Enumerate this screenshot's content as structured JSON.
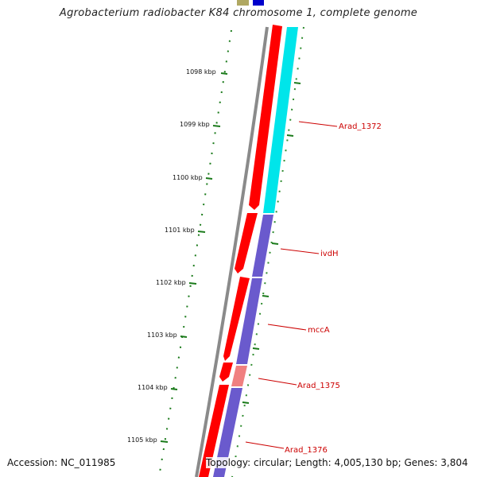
{
  "title": "Agrobacterium radiobacter K84 chromosome 1, complete genome",
  "footer": {
    "accession": "Accession: NC_011985",
    "topology": "Topology: circular; Length: 4,005,130 bp; Genes: 3,804"
  },
  "colors": {
    "forward_cds": "#ff0000",
    "reverse_cds_cyan": "#00e5ea",
    "reverse_cds_purple": "#6a5acd",
    "highlight_cds": "#f08080",
    "backbone": "#808080",
    "tick": "#1a7a1a",
    "label": "#cc0000",
    "top_stub_olive": "#a8a060",
    "top_stub_blue": "#0000cc"
  },
  "scale_labels": [
    "1098 kbp",
    "1099 kbp",
    "1100 kbp",
    "1101 kbp",
    "1102 kbp",
    "1103 kbp",
    "1104 kbp",
    "1105 kbp"
  ],
  "gene_labels": [
    "Arad_1372",
    "ivdH",
    "mccA",
    "Arad_1375",
    "Arad_1376"
  ]
}
